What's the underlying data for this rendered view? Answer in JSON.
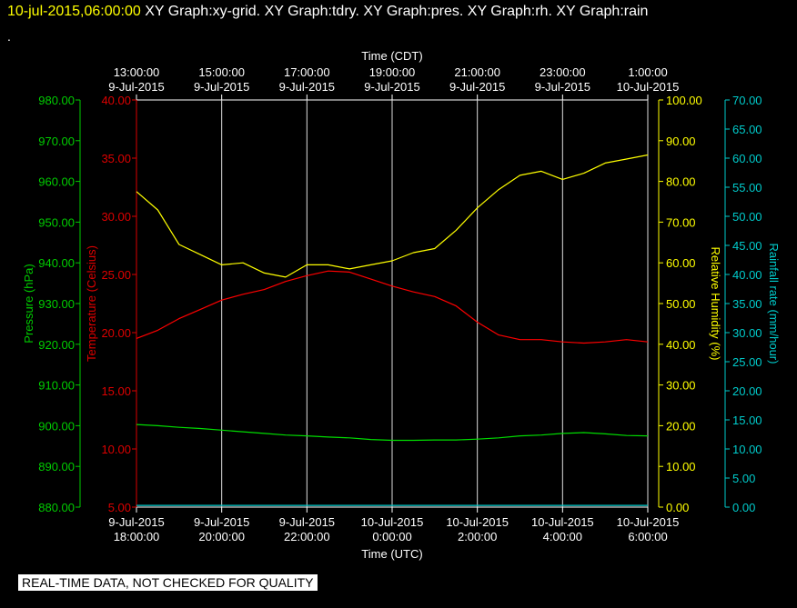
{
  "header": {
    "timestamp": "10-jul-2015,06:00:00",
    "graphs": [
      "XY Graph:xy-grid.",
      "XY Graph:tdry.",
      "XY Graph:pres.",
      "XY Graph:rh.",
      "XY Graph:rain"
    ],
    "dot": "."
  },
  "footer": {
    "quality_note": "REAL-TIME DATA, NOT CHECKED FOR QUALITY"
  },
  "chart_data": {
    "type": "line",
    "grid": true,
    "x_top": {
      "label": "Time (CDT)",
      "ticks": [
        {
          "time": "13:00:00",
          "date": "9-Jul-2015"
        },
        {
          "time": "15:00:00",
          "date": "9-Jul-2015"
        },
        {
          "time": "17:00:00",
          "date": "9-Jul-2015"
        },
        {
          "time": "19:00:00",
          "date": "9-Jul-2015"
        },
        {
          "time": "21:00:00",
          "date": "9-Jul-2015"
        },
        {
          "time": "23:00:00",
          "date": "9-Jul-2015"
        },
        {
          "time": "1:00:00",
          "date": "10-Jul-2015"
        }
      ]
    },
    "x_bottom": {
      "label": "Time (UTC)",
      "ticks": [
        {
          "date": "9-Jul-2015",
          "time": "18:00:00"
        },
        {
          "date": "9-Jul-2015",
          "time": "20:00:00"
        },
        {
          "date": "9-Jul-2015",
          "time": "22:00:00"
        },
        {
          "date": "10-Jul-2015",
          "time": "0:00:00"
        },
        {
          "date": "10-Jul-2015",
          "time": "2:00:00"
        },
        {
          "date": "10-Jul-2015",
          "time": "4:00:00"
        },
        {
          "date": "10-Jul-2015",
          "time": "6:00:00"
        }
      ],
      "range_utc": [
        "9-Jul-2015 18:00:00",
        "10-Jul-2015 6:00:00"
      ]
    },
    "axes": {
      "pressure": {
        "label": "Pressure (hPa)",
        "color": "#00cc00",
        "range": [
          880,
          980
        ],
        "ticks": [
          "880.00",
          "890.00",
          "900.00",
          "910.00",
          "920.00",
          "930.00",
          "940.00",
          "950.00",
          "960.00",
          "970.00",
          "980.00"
        ]
      },
      "temperature": {
        "label": "Temperature (Celsius)",
        "color": "#dd0000",
        "range": [
          5,
          40
        ],
        "ticks": [
          "5.00",
          "10.00",
          "15.00",
          "20.00",
          "25.00",
          "30.00",
          "35.00",
          "40.00"
        ]
      },
      "humidity": {
        "label": "Relative Humidity (%)",
        "color": "#ffff00",
        "range": [
          0,
          100
        ],
        "ticks": [
          "0.00",
          "10.00",
          "20.00",
          "30.00",
          "40.00",
          "50.00",
          "60.00",
          "70.00",
          "80.00",
          "90.00",
          "100.00"
        ]
      },
      "rain": {
        "label": "Rainfall rate (mm/hour)",
        "color": "#00cccc",
        "range": [
          0,
          70
        ],
        "ticks": [
          "0.00",
          "5.00",
          "10.00",
          "15.00",
          "20.00",
          "25.00",
          "30.00",
          "35.00",
          "40.00",
          "45.00",
          "50.00",
          "55.00",
          "60.00",
          "65.00",
          "70.00"
        ]
      }
    },
    "x_hours_utc": [
      0,
      0.5,
      1,
      1.5,
      2,
      2.5,
      3,
      3.5,
      4,
      4.5,
      5,
      5.5,
      6,
      6.5,
      7,
      7.5,
      8,
      8.5,
      9,
      9.5,
      10,
      10.5,
      11,
      11.5,
      12
    ],
    "series": [
      {
        "name": "Temperature (Celsius)",
        "axis": "temperature",
        "color": "#ff0000",
        "values": [
          19.5,
          20.2,
          21.2,
          22.0,
          22.8,
          23.3,
          23.7,
          24.4,
          24.9,
          25.3,
          25.2,
          24.6,
          24.0,
          23.5,
          23.1,
          22.3,
          20.9,
          19.8,
          19.4,
          19.4,
          19.2,
          19.1,
          19.2,
          19.4,
          19.2
        ]
      },
      {
        "name": "Pressure (hPa)",
        "axis": "pressure",
        "color": "#00dd00",
        "values": [
          900.3,
          900.0,
          899.6,
          899.3,
          898.9,
          898.5,
          898.1,
          897.7,
          897.5,
          897.2,
          897.0,
          896.6,
          896.4,
          896.4,
          896.5,
          896.5,
          896.7,
          897.0,
          897.5,
          897.7,
          898.1,
          898.3,
          898.0,
          897.6,
          897.5
        ]
      },
      {
        "name": "Relative Humidity (%)",
        "axis": "humidity",
        "color": "#ffff00",
        "values": [
          77.5,
          73.0,
          64.5,
          62.0,
          59.5,
          60.0,
          57.5,
          56.5,
          59.5,
          59.5,
          58.5,
          59.5,
          60.5,
          62.5,
          63.5,
          68.0,
          73.5,
          78.0,
          81.5,
          82.5,
          80.5,
          82.0,
          84.5,
          85.5,
          86.5
        ]
      },
      {
        "name": "Rainfall rate (mm/hour)",
        "axis": "rain",
        "color": "#00cccc",
        "values": [
          0.3,
          0.3,
          0.3,
          0.3,
          0.3,
          0.3,
          0.3,
          0.3,
          0.3,
          0.3,
          0.3,
          0.3,
          0.3,
          0.3,
          0.3,
          0.3,
          0.3,
          0.3,
          0.3,
          0.3,
          0.3,
          0.3,
          0.3,
          0.3,
          0.3
        ]
      }
    ]
  }
}
